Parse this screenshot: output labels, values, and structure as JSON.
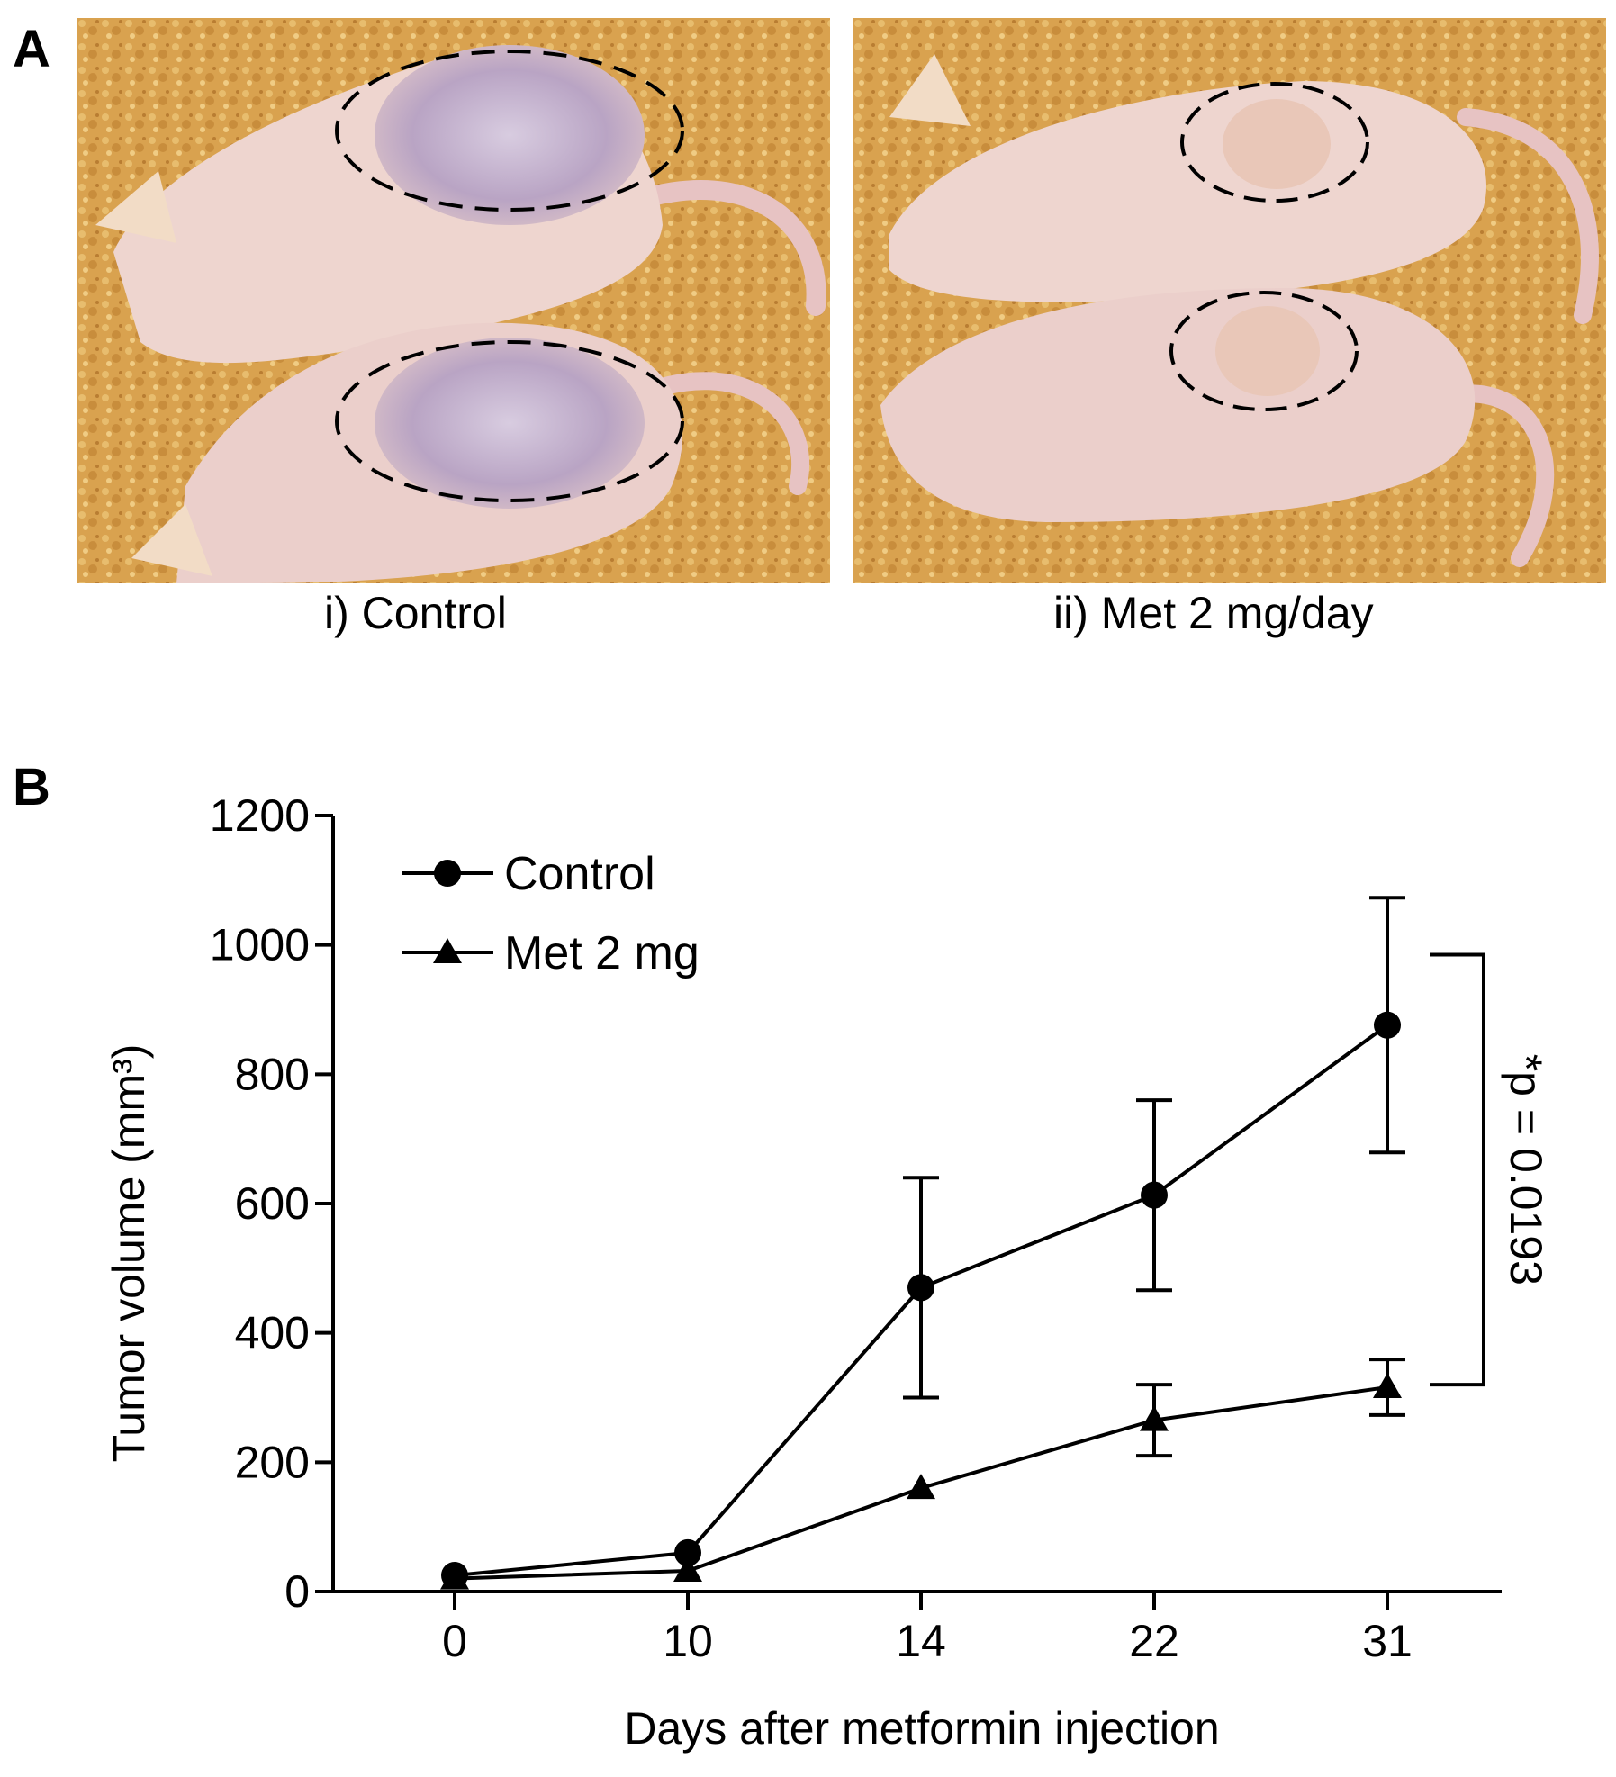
{
  "panel_a": {
    "letter": "A",
    "left_caption": "i) Control",
    "right_caption": "ii) Met 2 mg/day"
  },
  "panel_b": {
    "letter": "B"
  },
  "colors": {
    "bedding": "#d9a24f",
    "bedding_dark": "#b97d32",
    "mouse_skin": "#eed5cf",
    "mouse_shadow": "#c9aaa8",
    "tumor_purple": "#b9a4c4",
    "line": "#000000"
  },
  "chart_data": {
    "type": "line",
    "title": "",
    "xlabel": "Days after metformin injection",
    "ylabel": "Tumor volume (mm³)",
    "categories": [
      "0",
      "10",
      "14",
      "22",
      "31"
    ],
    "ylim": [
      0,
      1200
    ],
    "yticks": [
      0,
      200,
      400,
      600,
      800,
      1000,
      1200
    ],
    "grid": false,
    "legend_position": "top-left",
    "series": [
      {
        "name": "Control",
        "marker": "circle",
        "values": [
          25,
          60,
          470,
          613,
          876
        ],
        "error": [
          null,
          null,
          170,
          147,
          197
        ]
      },
      {
        "name": "Met 2 mg",
        "marker": "triangle",
        "values": [
          20,
          32,
          160,
          265,
          316
        ],
        "error": [
          null,
          null,
          null,
          55,
          43
        ]
      }
    ],
    "annotation": {
      "text": "*p = 0.0193",
      "upper_value": 985,
      "lower_value": 320
    }
  }
}
